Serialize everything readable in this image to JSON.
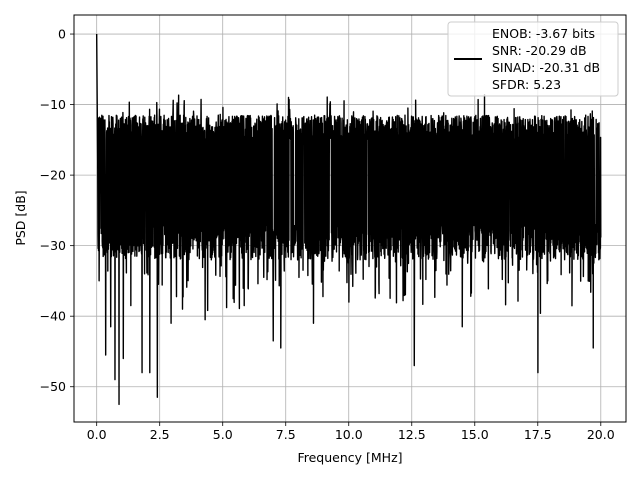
{
  "chart_data": {
    "type": "line",
    "xlabel": "Frequency [MHz]",
    "ylabel": "PSD [dB]",
    "xlim": [
      -0.9,
      21.0
    ],
    "ylim": [
      -55,
      2.7
    ],
    "xticks": [
      0.0,
      2.5,
      5.0,
      7.5,
      10.0,
      12.5,
      15.0,
      17.5,
      20.0
    ],
    "xtick_labels": [
      "0.0",
      "2.5",
      "5.0",
      "7.5",
      "10.0",
      "12.5",
      "15.0",
      "17.5",
      "20.0"
    ],
    "yticks": [
      0,
      -10,
      -20,
      -30,
      -40,
      -50
    ],
    "ytick_labels": [
      "0",
      "−10",
      "−20",
      "−30",
      "−40",
      "−50"
    ],
    "grid": true,
    "legend_placement": "upper right",
    "series": [
      {
        "color": "#000000",
        "x_start": 0.0,
        "x_end": 20.0,
        "peak": [
          0.0,
          0.0
        ],
        "dips": [
          [
            0.35,
            -45.5
          ],
          [
            0.55,
            -41.5
          ],
          [
            0.72,
            -49.0
          ],
          [
            0.88,
            -52.5
          ],
          [
            1.05,
            -46.0
          ],
          [
            1.35,
            -38.5
          ],
          [
            1.8,
            -48.0
          ],
          [
            2.1,
            -48.0
          ],
          [
            2.4,
            -51.5
          ],
          [
            2.95,
            -41.0
          ],
          [
            3.4,
            -39.0
          ],
          [
            4.3,
            -40.5
          ],
          [
            5.85,
            -38.5
          ],
          [
            7.0,
            -43.5
          ],
          [
            7.3,
            -44.5
          ],
          [
            8.6,
            -41.0
          ],
          [
            10.0,
            -38.0
          ],
          [
            12.6,
            -47.0
          ],
          [
            14.5,
            -41.5
          ],
          [
            17.5,
            -48.0
          ],
          [
            19.7,
            -44.5
          ]
        ],
        "band_upper_db": -12.5,
        "band_lower_db": -27.0,
        "max_db_after_peak": -8.5
      }
    ],
    "legend": {
      "lines": [
        "ENOB: -3.67 bits",
        "SNR: -20.29 dB",
        "SINAD: -20.31 dB",
        "SFDR: 5.23"
      ]
    }
  }
}
